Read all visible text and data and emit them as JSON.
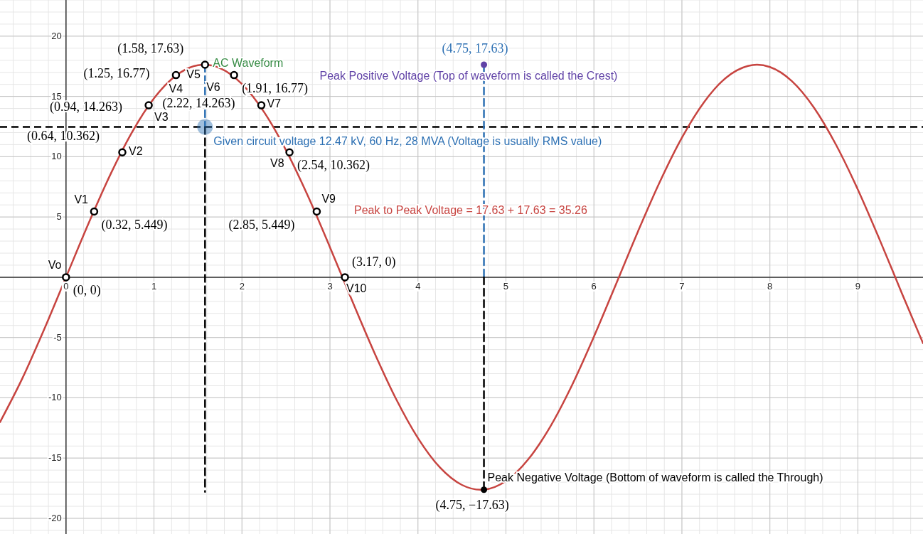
{
  "chart_data": {
    "type": "line",
    "xlim": [
      -0.75,
      9.74
    ],
    "ylim": [
      -21.3,
      23
    ],
    "xticks": [
      0,
      1,
      2,
      3,
      4,
      5,
      6,
      7,
      8,
      9
    ],
    "yticks": [
      -20,
      -15,
      -10,
      -5,
      5,
      10,
      15,
      20
    ],
    "grid": true,
    "series": [
      {
        "type": "line",
        "color": "#c74440",
        "marker": "none",
        "line_style": "solid",
        "x": [
          -0.75,
          -0.5,
          -0.25,
          0,
          0.25,
          0.5,
          0.75,
          1,
          1.25,
          1.5,
          1.5708,
          1.75,
          2,
          2.25,
          2.5,
          2.75,
          3,
          3.25,
          3.5,
          3.75,
          4,
          4.25,
          4.5,
          4.7124,
          4.75,
          5,
          5.25,
          5.5,
          5.75,
          6,
          6.25,
          6.5,
          6.75,
          7,
          7.25,
          7.5,
          7.75,
          7.854,
          8,
          8.25,
          8.5,
          8.75,
          9,
          9.25,
          9.5,
          9.74
        ],
        "values": [
          -12.02,
          -8.45,
          -4.36,
          0,
          4.36,
          8.45,
          12.02,
          14.84,
          16.73,
          17.59,
          17.63,
          17.35,
          16.03,
          13.72,
          10.55,
          6.73,
          2.49,
          -1.91,
          -6.18,
          -10.08,
          -13.34,
          -15.78,
          -17.23,
          -17.63,
          -17.62,
          -16.91,
          -15.14,
          -12.44,
          -8.97,
          -4.93,
          -0.59,
          3.79,
          7.93,
          11.58,
          14.51,
          16.54,
          17.53,
          17.63,
          17.44,
          16.27,
          14.08,
          11.01,
          7.27,
          3.07,
          -1.33,
          -5.47
        ]
      },
      {
        "type": "line",
        "color": "#2d70b3",
        "marker": "none",
        "line_style": "dashed",
        "x": [
          1.58,
          1.58
        ],
        "values": [
          17.63,
          12.47
        ]
      },
      {
        "type": "line",
        "color": "#000000",
        "marker": "none",
        "line_style": "dashed",
        "x": [
          1.58,
          1.58
        ],
        "values": [
          12.47,
          -17.8
        ]
      },
      {
        "type": "line",
        "color": "#2d70b3",
        "marker": "none",
        "line_style": "dashed",
        "x": [
          4.75,
          4.75
        ],
        "values": [
          17.63,
          0
        ]
      },
      {
        "type": "line",
        "color": "#000000",
        "marker": "none",
        "line_style": "dashed",
        "x": [
          4.75,
          4.75
        ],
        "values": [
          0,
          -17.63
        ]
      },
      {
        "type": "scatter",
        "color": "#2d70b3",
        "marker": "circle",
        "x": [
          1.58
        ],
        "values": [
          12.47
        ]
      },
      {
        "type": "scatter",
        "color": "#000000",
        "marker": "circle",
        "x": [
          0,
          0.32,
          0.64,
          0.94,
          1.25,
          1.58,
          1.91,
          2.22,
          2.54,
          2.85,
          3.17
        ],
        "values": [
          0,
          5.449,
          10.362,
          14.263,
          16.77,
          17.63,
          16.77,
          14.263,
          10.362,
          5.449,
          0
        ]
      },
      {
        "type": "scatter",
        "color": "#6042a6",
        "marker": "circle",
        "x": [
          4.75
        ],
        "values": [
          17.63
        ]
      },
      {
        "type": "scatter",
        "color": "#000000",
        "marker": "circle",
        "x": [
          4.75
        ],
        "values": [
          -17.63
        ]
      }
    ],
    "ref_lines": [
      {
        "axis": "y",
        "value": 12.47,
        "color": "#000000",
        "line_style": "dashed"
      }
    ],
    "annotations": [
      {
        "text": "(1.58, 17.63)",
        "x": 1.58,
        "y": 17.63
      },
      {
        "text": "(1.25, 16.77)",
        "x": 1.25,
        "y": 16.77
      },
      {
        "text": "(0.94, 14.263)",
        "x": 0.94,
        "y": 14.263
      },
      {
        "text": "(0.64, 10.362)",
        "x": 0.64,
        "y": 10.362
      },
      {
        "text": "(0.32, 5.449)",
        "x": 0.32,
        "y": 5.449
      },
      {
        "text": "(0, 0)",
        "x": 0,
        "y": 0
      },
      {
        "text": "(1.91, 16.77)",
        "x": 1.91,
        "y": 16.77
      },
      {
        "text": "(2.22, 14.263)",
        "x": 2.22,
        "y": 14.263
      },
      {
        "text": "(2.54, 10.362)",
        "x": 2.54,
        "y": 10.362
      },
      {
        "text": "(2.85, 5.449)",
        "x": 2.85,
        "y": 5.449
      },
      {
        "text": "(3.17, 0)",
        "x": 3.17,
        "y": 0
      },
      {
        "text": "(4.75, 17.63)",
        "x": 4.75,
        "y": 17.63
      },
      {
        "text": "(4.75, −17.63)",
        "x": 4.75,
        "y": -17.63
      },
      {
        "text": "Vo",
        "x": 0,
        "y": 0
      },
      {
        "text": "V1",
        "x": 0.32,
        "y": 5.449
      },
      {
        "text": "V2",
        "x": 0.64,
        "y": 10.362
      },
      {
        "text": "V3",
        "x": 0.94,
        "y": 14.263
      },
      {
        "text": "V4",
        "x": 1.25,
        "y": 16.77
      },
      {
        "text": "V5",
        "x": 1.58,
        "y": 17.63
      },
      {
        "text": "V6",
        "x": 1.91,
        "y": 16.77
      },
      {
        "text": "V7",
        "x": 2.22,
        "y": 14.263
      },
      {
        "text": "V8",
        "x": 2.54,
        "y": 10.362
      },
      {
        "text": "V9",
        "x": 2.85,
        "y": 5.449
      },
      {
        "text": "V10",
        "x": 3.17,
        "y": 0
      },
      {
        "text": "AC Waveform",
        "x": 1.58,
        "y": 17.63
      },
      {
        "text": "Peak Positive Voltage (Top of waveform is called the Crest)",
        "x": 4.75,
        "y": 17.63
      },
      {
        "text": "Given circuit voltage 12.47 kV, 60 Hz, 28 MVA (Voltage is usually RMS value)",
        "x": 1.58,
        "y": 12.47
      },
      "Peak to Peak Voltage = 17.63 + 17.63 = 35.26",
      {
        "text": "Peak Negative Voltage (Bottom of waveform is called the Through)",
        "x": 4.75,
        "y": -17.63
      }
    ]
  }
}
